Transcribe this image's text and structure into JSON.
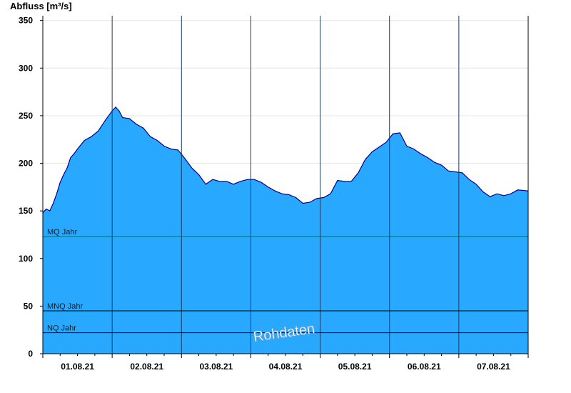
{
  "chart_data": {
    "type": "area",
    "ylabel": "Abfluss [m³/s]",
    "ylim": [
      0,
      355
    ],
    "yticks": [
      0,
      50,
      100,
      150,
      200,
      250,
      300,
      350
    ],
    "xlim": [
      0,
      7
    ],
    "xtick_labels": [
      "01.08.21",
      "02.08.21",
      "03.08.21",
      "04.08.21",
      "05.08.21",
      "06.08.21",
      "07.08.21"
    ],
    "grid": true,
    "fill_color": "#29a8ff",
    "line_color": "#00008b",
    "series": [
      {
        "x": [
          0,
          0.05,
          0.1,
          0.15,
          0.2,
          0.25,
          0.3,
          0.35,
          0.4,
          0.45,
          0.5,
          0.6,
          0.7,
          0.8,
          0.9,
          1.0,
          1.05,
          1.1,
          1.15,
          1.25,
          1.35,
          1.45,
          1.55,
          1.65,
          1.75,
          1.85,
          1.95,
          2.05,
          2.15,
          2.25,
          2.35,
          2.45,
          2.55,
          2.65,
          2.75,
          2.85,
          2.95,
          3.05,
          3.15,
          3.25,
          3.35,
          3.45,
          3.55,
          3.65,
          3.75,
          3.85,
          3.95,
          4.05,
          4.15,
          4.25,
          4.35,
          4.45,
          4.55,
          4.65,
          4.75,
          4.85,
          4.95,
          5.05,
          5.15,
          5.25,
          5.35,
          5.45,
          5.55,
          5.65,
          5.75,
          5.85,
          5.95,
          6.05,
          6.15,
          6.25,
          6.35,
          6.45,
          6.55,
          6.65,
          6.75,
          6.85,
          7.0
        ],
        "values": [
          148,
          152,
          150,
          158,
          168,
          180,
          188,
          195,
          206,
          210,
          215,
          224,
          228,
          234,
          245,
          255,
          259,
          255,
          248,
          247,
          241,
          237,
          228,
          224,
          218,
          215,
          214,
          205,
          195,
          188,
          178,
          183,
          181,
          181,
          178,
          181,
          183,
          183,
          180,
          175,
          171,
          168,
          167,
          164,
          158,
          159,
          163,
          164,
          168,
          182,
          181,
          181,
          190,
          204,
          212,
          217,
          222,
          231,
          232,
          218,
          215,
          210,
          206,
          201,
          198,
          192,
          191,
          190,
          183,
          178,
          170,
          165,
          168,
          166,
          168,
          172,
          171
        ]
      }
    ],
    "reference_lines": [
      {
        "label": "MQ Jahr",
        "value": 123,
        "color": "#007a33"
      },
      {
        "label": "MNQ Jahr",
        "value": 45,
        "color": "#000000"
      },
      {
        "label": "NQ Jahr",
        "value": 22,
        "color": "#000000"
      }
    ],
    "watermark": "Rohdaten"
  }
}
